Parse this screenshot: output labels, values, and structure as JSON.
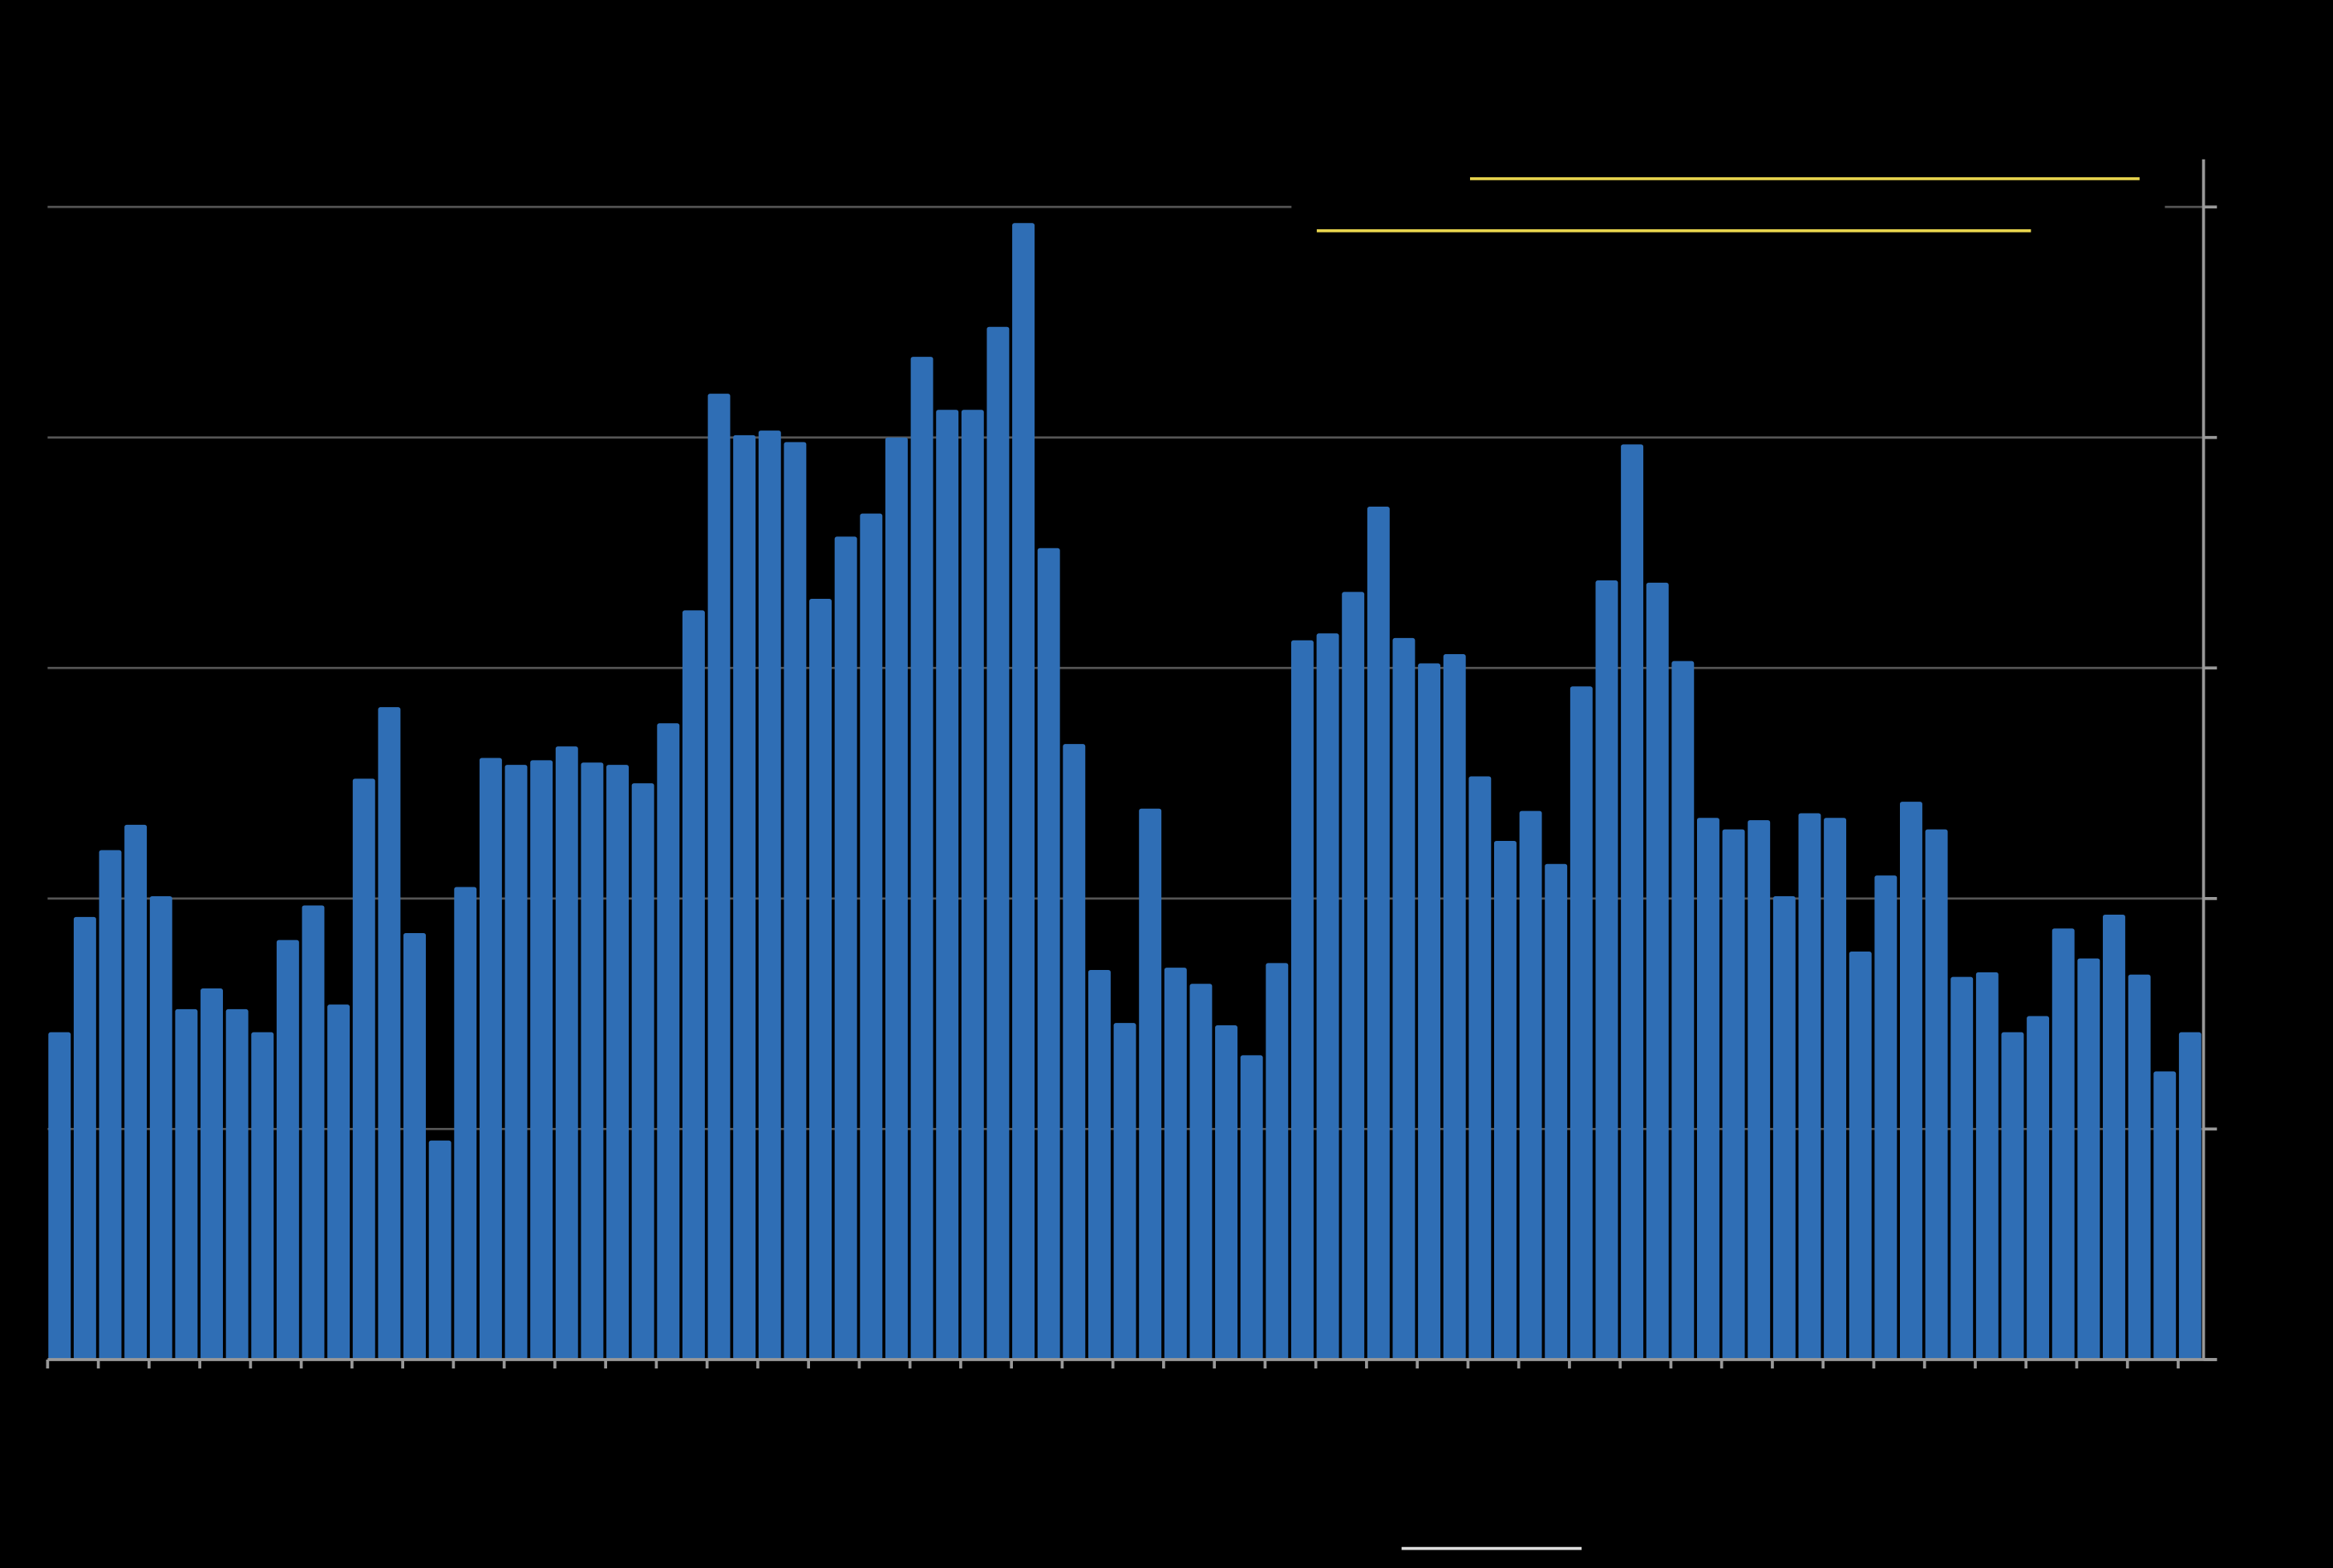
{
  "chart_data": {
    "type": "bar",
    "categories": [
      null,
      null,
      null,
      null,
      null,
      null,
      null,
      null,
      null,
      null,
      null,
      null,
      null,
      null,
      null,
      null,
      null,
      null,
      null,
      null,
      null,
      null,
      null,
      null,
      null,
      null,
      null,
      null,
      null,
      null,
      null,
      null,
      null,
      null,
      null,
      null,
      null,
      null,
      null,
      null,
      null,
      null,
      null,
      null,
      null,
      null,
      null,
      null,
      null,
      null,
      null,
      null,
      null,
      null,
      null,
      null,
      null,
      null,
      null,
      null,
      null,
      null,
      null,
      null,
      null,
      null,
      null,
      null,
      null,
      null,
      null,
      null,
      null,
      null,
      null,
      null,
      null,
      null,
      null,
      null,
      null,
      null,
      null,
      null,
      null
    ],
    "values": [
      1.42,
      1.92,
      2.21,
      2.32,
      2.01,
      1.52,
      1.61,
      1.52,
      1.42,
      1.82,
      1.97,
      1.54,
      2.52,
      2.83,
      1.85,
      0.95,
      2.05,
      2.61,
      2.58,
      2.6,
      2.66,
      2.59,
      2.58,
      2.5,
      2.76,
      3.25,
      4.19,
      4.01,
      4.03,
      3.98,
      3.3,
      3.57,
      3.67,
      4.0,
      4.35,
      4.12,
      4.12,
      4.48,
      4.93,
      3.52,
      2.67,
      1.69,
      1.46,
      2.39,
      1.7,
      1.63,
      1.45,
      1.32,
      1.72,
      3.12,
      3.15,
      3.33,
      3.7,
      3.13,
      3.02,
      3.06,
      2.53,
      2.25,
      2.38,
      2.15,
      2.92,
      3.38,
      3.97,
      3.37,
      3.03,
      2.35,
      2.3,
      2.34,
      2.01,
      2.37,
      2.35,
      1.77,
      2.1,
      2.42,
      2.3,
      1.66,
      1.68,
      1.42,
      1.49,
      1.87,
      1.74,
      1.93,
      1.67,
      1.25,
      1.42
    ],
    "color": "#2f6eb5",
    "ylim": [
      0,
      5
    ],
    "yticks": [
      0,
      1,
      2,
      3,
      4,
      5
    ],
    "grid": true
  }
}
